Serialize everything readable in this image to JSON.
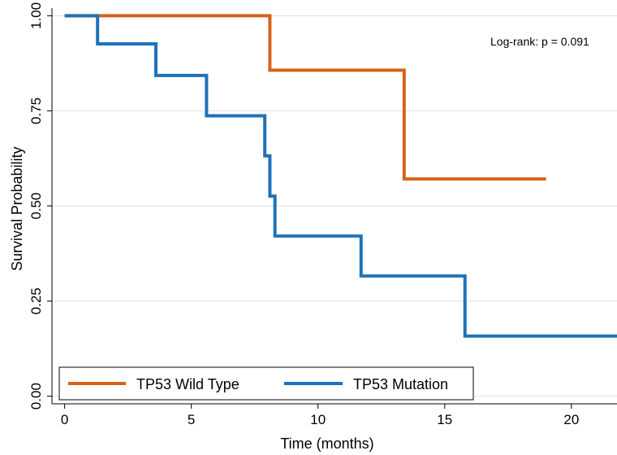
{
  "chart_data": {
    "type": "line",
    "subtype": "kaplan-meier step",
    "title": "",
    "xlabel": "Time (months)",
    "ylabel": "Survival Probability",
    "xlim": [
      -0.5,
      21.8
    ],
    "ylim": [
      -0.02,
      1.02
    ],
    "x_ticks": [
      0,
      5,
      10,
      15,
      20
    ],
    "x_tick_labels": [
      "0",
      "5",
      "10",
      "15",
      "20"
    ],
    "y_ticks": [
      0,
      0.25,
      0.5,
      0.75,
      1
    ],
    "y_tick_labels": [
      "0.00",
      "0.25",
      "0.50",
      "0.75",
      "1.00"
    ],
    "grid": "horizontal",
    "annotation": "Log-rank: p = 0.091",
    "legend_position": "bottom",
    "series": [
      {
        "name": "TP53 Wild Type",
        "color": "#d5621a",
        "x": [
          0,
          8.1,
          13.4,
          19.0
        ],
        "y": [
          1.0,
          0.857,
          0.571,
          0.571
        ]
      },
      {
        "name": "TP53 Mutation",
        "color": "#1e72b8",
        "x": [
          0,
          1.3,
          3.6,
          5.6,
          7.9,
          8.1,
          8.3,
          11.7,
          15.8,
          21.8
        ],
        "y": [
          1.0,
          0.926,
          0.843,
          0.737,
          0.632,
          0.526,
          0.421,
          0.316,
          0.158,
          0.158
        ]
      }
    ]
  }
}
